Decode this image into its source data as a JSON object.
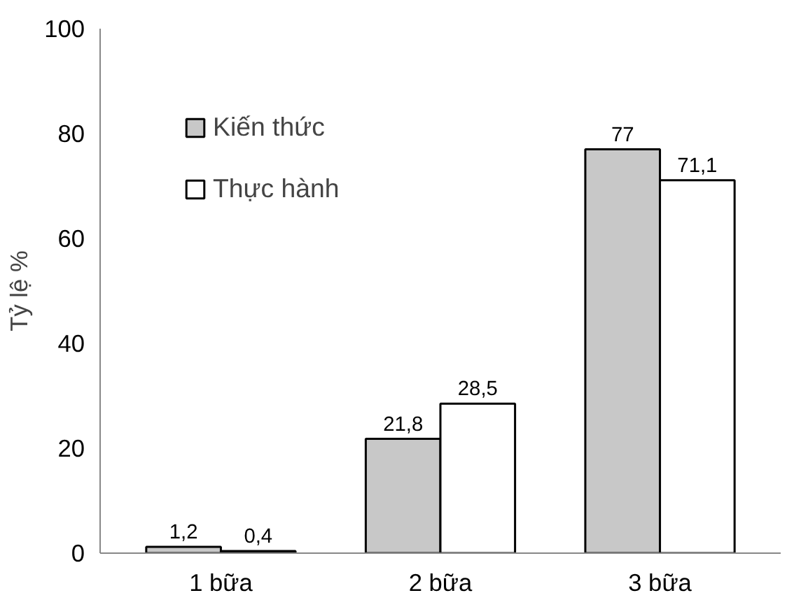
{
  "chart_data": {
    "type": "bar",
    "ylabel": "Tỷ lệ %",
    "categories": [
      "1 bữa",
      "2 bữa",
      "3 bữa"
    ],
    "series": [
      {
        "name": "Kiến thức",
        "color": "#c8c8c8",
        "values": [
          1.2,
          21.8,
          77
        ],
        "value_labels": [
          "1,2",
          "21,8",
          "77"
        ]
      },
      {
        "name": "Thực hành",
        "color": "#ffffff",
        "values": [
          0.4,
          28.5,
          71.1
        ],
        "value_labels": [
          "0,4",
          "28,5",
          "71,1"
        ]
      }
    ],
    "ylim": [
      0,
      100
    ],
    "yticks": [
      0,
      20,
      40,
      60,
      80,
      100
    ],
    "grid": false,
    "legend": "top left"
  }
}
